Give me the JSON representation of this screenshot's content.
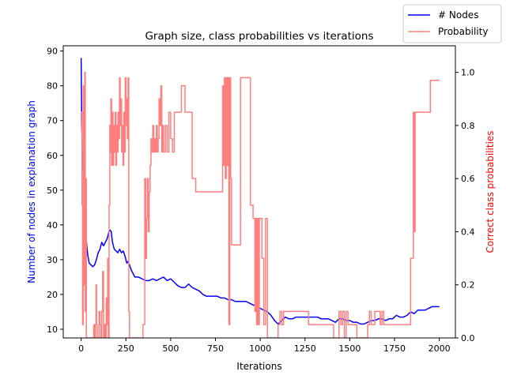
{
  "chart_data": {
    "type": "line",
    "title": "Graph size, class probabilities vs iterations",
    "xlabel": "Iterations",
    "ylabel_left": "Number of nodes in explanation graph",
    "ylabel_right": "Correct class probabilities",
    "xlim": [
      -100,
      2090
    ],
    "ylim_left": [
      7.5,
      91.5
    ],
    "ylim_right": [
      0,
      1.1
    ],
    "x_ticks": [
      0,
      250,
      500,
      750,
      1000,
      1250,
      1500,
      1750,
      2000
    ],
    "y_ticks_left": [
      10,
      20,
      30,
      40,
      50,
      60,
      70,
      80,
      90
    ],
    "y_ticks_right": [
      0.0,
      0.2,
      0.4,
      0.6,
      0.8,
      1.0
    ],
    "grid": false,
    "legend": {
      "placement": "top-right, outside axes"
    },
    "series": [
      {
        "name": "# Nodes",
        "axis": "left",
        "color": "#0000ff",
        "points": [
          [
            0,
            88
          ],
          [
            3,
            70
          ],
          [
            6,
            62
          ],
          [
            10,
            56
          ],
          [
            13,
            57
          ],
          [
            16,
            50
          ],
          [
            20,
            43
          ],
          [
            24,
            39
          ],
          [
            28,
            36
          ],
          [
            33,
            33
          ],
          [
            38,
            31
          ],
          [
            45,
            29
          ],
          [
            55,
            28.5
          ],
          [
            65,
            28
          ],
          [
            75,
            28.5
          ],
          [
            85,
            30
          ],
          [
            95,
            32
          ],
          [
            105,
            33
          ],
          [
            115,
            35
          ],
          [
            125,
            34
          ],
          [
            135,
            35
          ],
          [
            145,
            36
          ],
          [
            155,
            38
          ],
          [
            162,
            38.5
          ],
          [
            168,
            38
          ],
          [
            175,
            35
          ],
          [
            185,
            33
          ],
          [
            195,
            32.5
          ],
          [
            205,
            32
          ],
          [
            215,
            33
          ],
          [
            225,
            32
          ],
          [
            235,
            32.5
          ],
          [
            245,
            31
          ],
          [
            255,
            29
          ],
          [
            262,
            29.5
          ],
          [
            270,
            28.5
          ],
          [
            280,
            27
          ],
          [
            290,
            26
          ],
          [
            300,
            25
          ],
          [
            320,
            25
          ],
          [
            340,
            24.5
          ],
          [
            360,
            24
          ],
          [
            380,
            24
          ],
          [
            400,
            24.5
          ],
          [
            420,
            24
          ],
          [
            440,
            24.5
          ],
          [
            460,
            25
          ],
          [
            480,
            24
          ],
          [
            500,
            24.5
          ],
          [
            520,
            23.5
          ],
          [
            540,
            22.5
          ],
          [
            560,
            22
          ],
          [
            580,
            22
          ],
          [
            600,
            23
          ],
          [
            620,
            22
          ],
          [
            640,
            21.5
          ],
          [
            660,
            21
          ],
          [
            680,
            20
          ],
          [
            700,
            19.5
          ],
          [
            720,
            19.5
          ],
          [
            740,
            19.5
          ],
          [
            760,
            19.5
          ],
          [
            780,
            19
          ],
          [
            800,
            19
          ],
          [
            820,
            18.5
          ],
          [
            840,
            18.5
          ],
          [
            860,
            18
          ],
          [
            880,
            18
          ],
          [
            900,
            18
          ],
          [
            920,
            18
          ],
          [
            940,
            17.5
          ],
          [
            960,
            17
          ],
          [
            980,
            16.5
          ],
          [
            1000,
            16
          ],
          [
            1020,
            15.5
          ],
          [
            1040,
            15
          ],
          [
            1060,
            14
          ],
          [
            1080,
            12.5
          ],
          [
            1100,
            11.5
          ],
          [
            1120,
            12.5
          ],
          [
            1140,
            13.5
          ],
          [
            1160,
            13
          ],
          [
            1180,
            13
          ],
          [
            1200,
            13.5
          ],
          [
            1220,
            13.5
          ],
          [
            1240,
            13.5
          ],
          [
            1260,
            13.5
          ],
          [
            1280,
            13.5
          ],
          [
            1300,
            13.5
          ],
          [
            1320,
            13.5
          ],
          [
            1340,
            13
          ],
          [
            1360,
            13
          ],
          [
            1380,
            13
          ],
          [
            1400,
            12.5
          ],
          [
            1420,
            12
          ],
          [
            1440,
            13
          ],
          [
            1460,
            13
          ],
          [
            1480,
            12.5
          ],
          [
            1500,
            12.5
          ],
          [
            1520,
            12
          ],
          [
            1540,
            12
          ],
          [
            1560,
            11.5
          ],
          [
            1580,
            11.5
          ],
          [
            1600,
            12
          ],
          [
            1620,
            12.5
          ],
          [
            1640,
            12.5
          ],
          [
            1660,
            13
          ],
          [
            1680,
            13
          ],
          [
            1700,
            12.5
          ],
          [
            1720,
            13
          ],
          [
            1740,
            13
          ],
          [
            1760,
            14
          ],
          [
            1780,
            13.5
          ],
          [
            1800,
            13.5
          ],
          [
            1820,
            14
          ],
          [
            1840,
            15
          ],
          [
            1860,
            14.5
          ],
          [
            1880,
            15.5
          ],
          [
            1900,
            15.5
          ],
          [
            1920,
            15.5
          ],
          [
            1940,
            16
          ],
          [
            1960,
            16.5
          ],
          [
            1980,
            16.5
          ],
          [
            2000,
            16.5
          ]
        ]
      },
      {
        "name": "Probability",
        "axis": "right",
        "color": "#ff7f7f",
        "points": [
          [
            0,
            0.85
          ],
          [
            5,
            0.5
          ],
          [
            8,
            0.05
          ],
          [
            12,
            0.95
          ],
          [
            15,
            0.2
          ],
          [
            18,
            0.7
          ],
          [
            20,
            1.0
          ],
          [
            23,
            0.1
          ],
          [
            26,
            0.6
          ],
          [
            29,
            0.0
          ],
          [
            35,
            0.0
          ],
          [
            60,
            0.0
          ],
          [
            70,
            0.05
          ],
          [
            75,
            0.0
          ],
          [
            80,
            0.05
          ],
          [
            83,
            0.2
          ],
          [
            86,
            0.05
          ],
          [
            90,
            0.0
          ],
          [
            100,
            0.1
          ],
          [
            105,
            0.05
          ],
          [
            110,
            0.0
          ],
          [
            115,
            0.1
          ],
          [
            120,
            0.25
          ],
          [
            125,
            0.0
          ],
          [
            130,
            0.05
          ],
          [
            135,
            0.0
          ],
          [
            140,
            0.15
          ],
          [
            145,
            0.05
          ],
          [
            148,
            0.3
          ],
          [
            152,
            0.0
          ],
          [
            156,
            0.5
          ],
          [
            160,
            0.8
          ],
          [
            163,
            0.7
          ],
          [
            166,
            0.9
          ],
          [
            170,
            0.65
          ],
          [
            174,
            0.85
          ],
          [
            178,
            0.65
          ],
          [
            182,
            0.8
          ],
          [
            186,
            0.7
          ],
          [
            190,
            0.85
          ],
          [
            194,
            0.65
          ],
          [
            198,
            0.8
          ],
          [
            202,
            0.7
          ],
          [
            206,
            0.85
          ],
          [
            210,
            0.75
          ],
          [
            214,
            0.98
          ],
          [
            218,
            0.8
          ],
          [
            222,
            0.9
          ],
          [
            226,
            0.7
          ],
          [
            230,
            0.8
          ],
          [
            234,
            0.65
          ],
          [
            238,
            0.85
          ],
          [
            242,
            0.7
          ],
          [
            246,
            0.98
          ],
          [
            250,
            0.8
          ],
          [
            254,
            0.9
          ],
          [
            258,
            0.75
          ],
          [
            262,
            0.98
          ],
          [
            266,
            0.1
          ],
          [
            270,
            0.0
          ],
          [
            340,
            0.0
          ],
          [
            345,
            0.05
          ],
          [
            350,
            0.05
          ],
          [
            355,
            0.6
          ],
          [
            360,
            0.3
          ],
          [
            365,
            0.45
          ],
          [
            370,
            0.6
          ],
          [
            375,
            0.4
          ],
          [
            380,
            0.55
          ],
          [
            385,
            0.65
          ],
          [
            390,
            0.75
          ],
          [
            395,
            0.7
          ],
          [
            400,
            0.8
          ],
          [
            405,
            0.7
          ],
          [
            410,
            0.75
          ],
          [
            415,
            0.7
          ],
          [
            420,
            0.8
          ],
          [
            425,
            0.7
          ],
          [
            430,
            0.75
          ],
          [
            435,
            0.9
          ],
          [
            440,
            0.8
          ],
          [
            445,
            0.95
          ],
          [
            450,
            0.7
          ],
          [
            455,
            0.8
          ],
          [
            460,
            0.7
          ],
          [
            470,
            0.8
          ],
          [
            480,
            0.7
          ],
          [
            490,
            0.85
          ],
          [
            500,
            0.75
          ],
          [
            510,
            0.7
          ],
          [
            520,
            0.85
          ],
          [
            540,
            0.85
          ],
          [
            560,
            0.95
          ],
          [
            580,
            0.85
          ],
          [
            600,
            0.85
          ],
          [
            620,
            0.6
          ],
          [
            640,
            0.55
          ],
          [
            660,
            0.55
          ],
          [
            680,
            0.55
          ],
          [
            700,
            0.55
          ],
          [
            720,
            0.55
          ],
          [
            740,
            0.55
          ],
          [
            760,
            0.55
          ],
          [
            780,
            0.55
          ],
          [
            790,
            0.95
          ],
          [
            795,
            0.65
          ],
          [
            800,
            0.98
          ],
          [
            805,
            0.6
          ],
          [
            810,
            0.98
          ],
          [
            815,
            0.65
          ],
          [
            820,
            0.98
          ],
          [
            825,
            0.05
          ],
          [
            830,
            0.98
          ],
          [
            835,
            0.6
          ],
          [
            840,
            0.35
          ],
          [
            860,
            0.35
          ],
          [
            880,
            0.35
          ],
          [
            890,
            0.98
          ],
          [
            920,
            0.98
          ],
          [
            940,
            0.98
          ],
          [
            945,
            0.5
          ],
          [
            950,
            0.5
          ],
          [
            960,
            0.45
          ],
          [
            970,
            0.1
          ],
          [
            975,
            0.45
          ],
          [
            980,
            0.05
          ],
          [
            985,
            0.45
          ],
          [
            990,
            0.05
          ],
          [
            995,
            0.45
          ],
          [
            1000,
            0.45
          ],
          [
            1010,
            0.3
          ],
          [
            1020,
            0.05
          ],
          [
            1030,
            0.45
          ],
          [
            1040,
            0.0
          ],
          [
            1060,
            0.0
          ],
          [
            1080,
            0.0
          ],
          [
            1100,
            0.05
          ],
          [
            1110,
            0.1
          ],
          [
            1120,
            0.05
          ],
          [
            1130,
            0.1
          ],
          [
            1150,
            0.1
          ],
          [
            1180,
            0.1
          ],
          [
            1200,
            0.1
          ],
          [
            1250,
            0.1
          ],
          [
            1270,
            0.05
          ],
          [
            1300,
            0.05
          ],
          [
            1320,
            0.05
          ],
          [
            1340,
            0.05
          ],
          [
            1360,
            0.05
          ],
          [
            1380,
            0.05
          ],
          [
            1400,
            0.05
          ],
          [
            1410,
            0.0
          ],
          [
            1420,
            0.0
          ],
          [
            1430,
            0.0
          ],
          [
            1440,
            0.1
          ],
          [
            1450,
            0.05
          ],
          [
            1460,
            0.1
          ],
          [
            1470,
            0.0
          ],
          [
            1480,
            0.1
          ],
          [
            1490,
            0.05
          ],
          [
            1500,
            0.05
          ],
          [
            1520,
            0.05
          ],
          [
            1540,
            0.0
          ],
          [
            1560,
            0.0
          ],
          [
            1580,
            0.0
          ],
          [
            1600,
            0.05
          ],
          [
            1610,
            0.1
          ],
          [
            1620,
            0.05
          ],
          [
            1640,
            0.1
          ],
          [
            1660,
            0.1
          ],
          [
            1670,
            0.05
          ],
          [
            1680,
            0.1
          ],
          [
            1690,
            0.05
          ],
          [
            1700,
            0.05
          ],
          [
            1720,
            0.05
          ],
          [
            1740,
            0.05
          ],
          [
            1760,
            0.05
          ],
          [
            1780,
            0.05
          ],
          [
            1800,
            0.05
          ],
          [
            1820,
            0.05
          ],
          [
            1840,
            0.3
          ],
          [
            1850,
            0.3
          ],
          [
            1855,
            0.85
          ],
          [
            1860,
            0.4
          ],
          [
            1865,
            0.85
          ],
          [
            1880,
            0.85
          ],
          [
            1900,
            0.85
          ],
          [
            1920,
            0.85
          ],
          [
            1940,
            0.85
          ],
          [
            1950,
            0.97
          ],
          [
            1980,
            0.97
          ],
          [
            2000,
            0.97
          ]
        ]
      }
    ]
  }
}
